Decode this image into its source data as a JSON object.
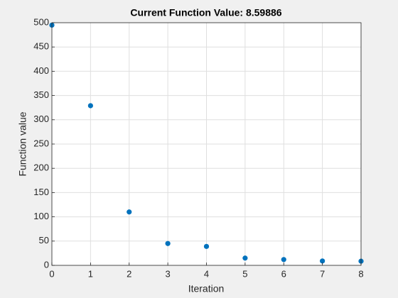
{
  "chart_data": {
    "type": "scatter",
    "title": "Current Function Value: 8.59886",
    "x_label": "Iteration",
    "y_label": "Function value",
    "x": [
      0,
      1,
      2,
      3,
      4,
      5,
      6,
      7,
      8
    ],
    "series": [
      {
        "name": "Function value",
        "color": "#0072bd",
        "values": [
          495,
          329,
          110,
          45,
          39,
          15,
          12,
          9,
          8.59886
        ]
      }
    ],
    "xlim": [
      0,
      8
    ],
    "xticks": [
      0,
      1,
      2,
      3,
      4,
      5,
      6,
      7,
      8
    ],
    "ylim": [
      0,
      500
    ],
    "yticks": [
      0,
      50,
      100,
      150,
      200,
      250,
      300,
      350,
      400,
      450,
      500
    ],
    "grid": true
  }
}
